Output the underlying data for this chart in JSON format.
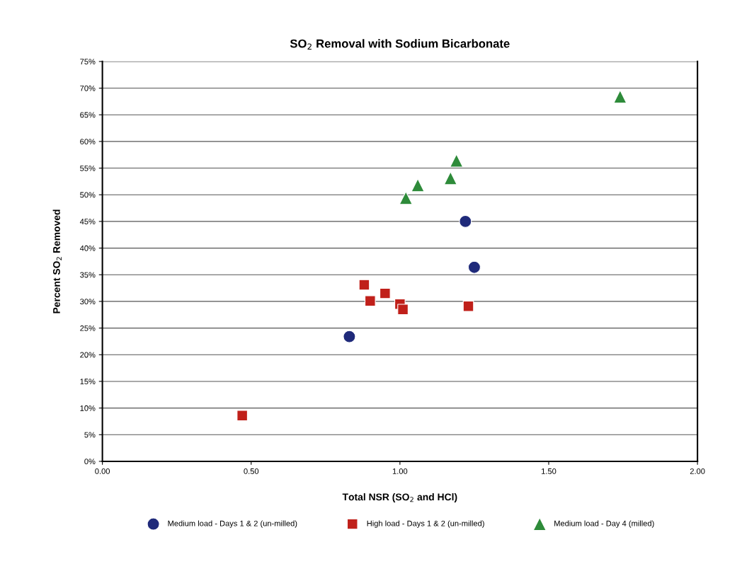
{
  "chart_data": {
    "type": "scatter",
    "title": "SO$_{2}$ Removal with Sodium Bicarbonate",
    "xlabel": "Total NSR (SO$_{2}$ and HCl)",
    "ylabel": "Percent SO$_{2}$ Removed",
    "xlim": [
      0,
      2
    ],
    "xticks": [
      {
        "value": 0,
        "label": "0.00"
      },
      {
        "value": 0.5,
        "label": "0.50"
      },
      {
        "value": 1,
        "label": "1.00"
      },
      {
        "value": 1.5,
        "label": "1.50"
      },
      {
        "value": 2,
        "label": "2.00"
      }
    ],
    "ylim": [
      0,
      75
    ],
    "yticks": [
      {
        "value": 0,
        "label": "0%"
      },
      {
        "value": 5,
        "label": "5%"
      },
      {
        "value": 10,
        "label": "10%"
      },
      {
        "value": 15,
        "label": "15%"
      },
      {
        "value": 20,
        "label": "20%"
      },
      {
        "value": 25,
        "label": "25%"
      },
      {
        "value": 30,
        "label": "30%"
      },
      {
        "value": 35,
        "label": "35%"
      },
      {
        "value": 40,
        "label": "40%"
      },
      {
        "value": 45,
        "label": "45%"
      },
      {
        "value": 50,
        "label": "50%"
      },
      {
        "value": 55,
        "label": "55%"
      },
      {
        "value": 60,
        "label": "60%"
      },
      {
        "value": 65,
        "label": "65%"
      },
      {
        "value": 70,
        "label": "70%"
      },
      {
        "value": 75,
        "label": "75%"
      }
    ],
    "grid": "y",
    "legend": "bottom",
    "series": [
      {
        "name": "Medium load - Days 1 & 2 (un-milled)",
        "color": "#1f2a7a",
        "marker": "circle",
        "x": [
          0.83,
          1.22,
          1.25
        ],
        "values": [
          23.4,
          45.0,
          36.4
        ]
      },
      {
        "name": "High load - Days 1 & 2 (un-milled)",
        "color": "#c0201a",
        "marker": "square",
        "x": [
          0.47,
          0.88,
          0.9,
          0.95,
          1.0,
          1.01,
          1.23
        ],
        "values": [
          8.6,
          33.1,
          30.1,
          31.5,
          29.5,
          28.5,
          29.1
        ]
      },
      {
        "name": "Medium load - Day 4 (milled)",
        "color": "#2e8b3a",
        "marker": "triangle",
        "x": [
          1.02,
          1.06,
          1.17,
          1.19,
          1.74
        ],
        "values": [
          49.4,
          51.8,
          53.1,
          56.4,
          68.4
        ]
      }
    ]
  }
}
